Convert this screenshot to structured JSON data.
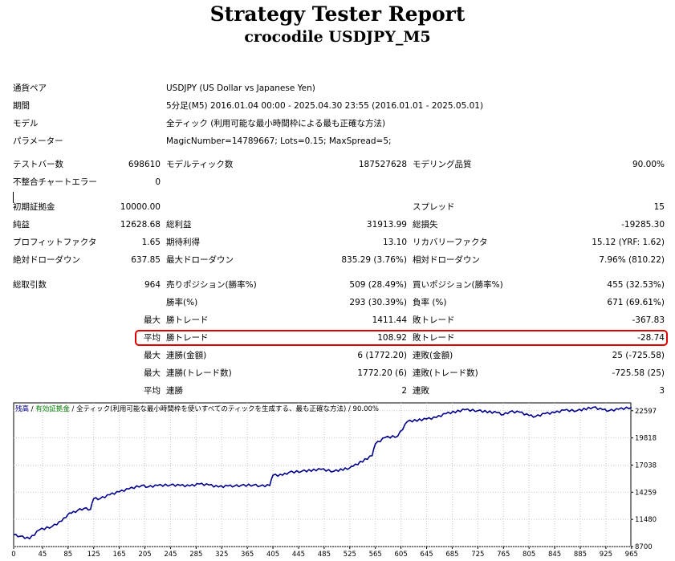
{
  "header": {
    "title": "Strategy Tester Report",
    "subtitle": "crocodile USDJPY_M5"
  },
  "info": {
    "pair_label": "通貨ペア",
    "pair_value": "USDJPY (US Dollar vs Japanese Yen)",
    "period_label": "期間",
    "period_value": "5分足(M5) 2016.01.04 00:00 - 2025.04.30 23:55 (2016.01.01 - 2025.05.01)",
    "model_label": "モデル",
    "model_value": "全ティック (利用可能な最小時間枠による最も正確な方法)",
    "params_label": "パラメーター",
    "params_value": "MagicNumber=14789667; Lots=0.15; MaxSpread=5;"
  },
  "stats": {
    "bars_label": "テストバー数",
    "bars_value": "698610",
    "ticks_label": "モデルティック数",
    "ticks_value": "187527628",
    "quality_label": "モデリング品質",
    "quality_value": "90.00%",
    "mismatch_label": "不整合チャートエラー",
    "mismatch_value": "0",
    "deposit_label": "初期証拠金",
    "deposit_value": "10000.00",
    "spread_label": "スプレッド",
    "spread_value": "15",
    "net_label": "純益",
    "net_value": "12628.68",
    "gross_profit_label": "総利益",
    "gross_profit_value": "31913.99",
    "gross_loss_label": "総損失",
    "gross_loss_value": "-19285.30",
    "pf_label": "プロフィットファクタ",
    "pf_value": "1.65",
    "expected_label": "期待利得",
    "expected_value": "13.10",
    "recovery_label": "リカバリーファクタ",
    "recovery_value": "15.12 (YRF: 1.62)",
    "abs_dd_label": "絶対ドローダウン",
    "abs_dd_value": "637.85",
    "max_dd_label": "最大ドローダウン",
    "max_dd_value": "835.29 (3.76%)",
    "rel_dd_label": "相対ドローダウン",
    "rel_dd_value": "7.96% (810.22)",
    "total_label": "総取引数",
    "total_value": "964",
    "short_label": "売りポジション(勝率%)",
    "short_value": "509 (28.49%)",
    "long_label": "買いポジション(勝率%)",
    "long_value": "455 (32.53%)",
    "winrate_label": "勝率(%)",
    "winrate_value": "293 (30.39%)",
    "lossrate_label": "負率 (%)",
    "lossrate_value": "671 (69.61%)",
    "max_label": "最大",
    "avg_label": "平均",
    "best_label": "勝トレード",
    "best_value": "1411.44",
    "worst_label": "敗トレード",
    "worst_value": "-367.83",
    "avg_win_label": "勝トレード",
    "avg_win_value": "108.92",
    "avg_loss_label": "敗トレード",
    "avg_loss_value": "-28.74",
    "consec_win_amt_label": "連勝(金額)",
    "consec_win_amt_value": "6 (1772.20)",
    "consec_loss_amt_label": "連敗(金額)",
    "consec_loss_amt_value": "25 (-725.58)",
    "consec_win_cnt_label": "連勝(トレード数)",
    "consec_win_cnt_value": "1772.20 (6)",
    "consec_loss_cnt_label": "連敗(トレード数)",
    "consec_loss_cnt_value": "-725.58 (25)",
    "avg_consec_win_label": "連勝",
    "avg_consec_win_value": "2",
    "avg_consec_loss_label": "連敗",
    "avg_consec_loss_value": "3"
  },
  "chart_legend": {
    "balance": "残高",
    "equity": "有効証拠金",
    "sep": " / ",
    "model_text": "全ティック(利用可能な最小時間枠を使いすべてのティックを生成する、最も正確な方法)",
    "quality": " / 90.00%"
  },
  "colors": {
    "balance_line": "#00008b",
    "highlight_border": "#e00000",
    "equity_legend": "#008000"
  },
  "chart_data": {
    "type": "line",
    "title": "",
    "xlabel": "",
    "ylabel": "",
    "x_ticks": [
      "0",
      "45",
      "85",
      "125",
      "165",
      "205",
      "245",
      "285",
      "325",
      "365",
      "405",
      "445",
      "485",
      "525",
      "565",
      "605",
      "645",
      "685",
      "725",
      "765",
      "805",
      "845",
      "885",
      "925",
      "965"
    ],
    "y_ticks": [
      "22597",
      "19818",
      "17038",
      "14259",
      "11480",
      "8700"
    ],
    "xlim": [
      0,
      964
    ],
    "ylim": [
      8700,
      23400
    ],
    "grid": true,
    "series": [
      {
        "name": "残高",
        "x": [
          0,
          10,
          25,
          40,
          60,
          75,
          85,
          90,
          100,
          110,
          120,
          125,
          135,
          150,
          165,
          180,
          200,
          210,
          225,
          245,
          260,
          275,
          290,
          305,
          320,
          335,
          345,
          355,
          375,
          385,
          400,
          405,
          420,
          430,
          450,
          480,
          500,
          525,
          530,
          560,
          565,
          580,
          600,
          615,
          645,
          660,
          675,
          705,
          725,
          755,
          765,
          775,
          790,
          805,
          815,
          830,
          845,
          860,
          880,
          905,
          920,
          930,
          945,
          965
        ],
        "y": [
          9900,
          9750,
          9500,
          10400,
          10750,
          11300,
          12000,
          12100,
          12400,
          12600,
          12500,
          13600,
          13600,
          14000,
          14300,
          14600,
          14950,
          14800,
          14950,
          15000,
          14950,
          14900,
          15100,
          15000,
          14800,
          14900,
          14900,
          14950,
          15000,
          14900,
          14950,
          16000,
          16000,
          16300,
          16400,
          16600,
          16400,
          16750,
          16900,
          18000,
          19200,
          19850,
          20000,
          21500,
          21750,
          21900,
          22300,
          22700,
          22600,
          22400,
          22200,
          22500,
          22450,
          22100,
          22000,
          22300,
          22400,
          22650,
          22600,
          22950,
          22700,
          22600,
          22750,
          22950
        ]
      }
    ]
  }
}
